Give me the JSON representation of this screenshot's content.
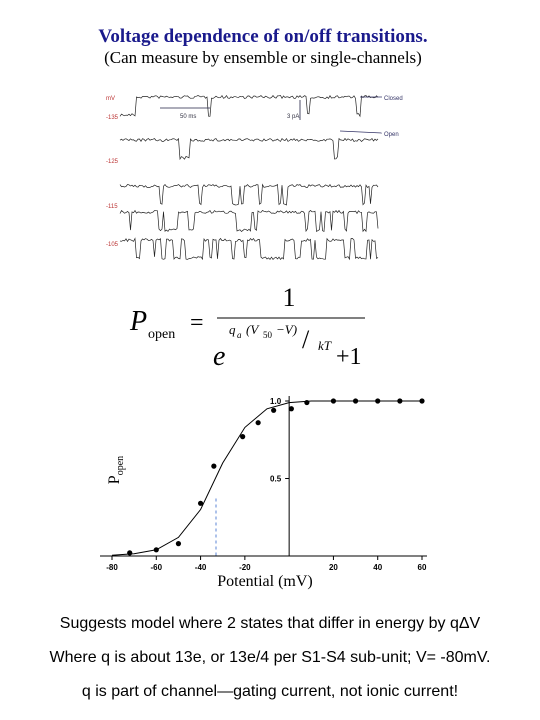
{
  "title": "Voltage dependence of on/off transitions.",
  "subtitle": "(Can measure by ensemble or single-channels)",
  "traces": {
    "voltages": [
      "mV",
      "-135",
      "-125",
      "-115",
      "-105"
    ],
    "time_scale": "50 ms",
    "current_scale": "3 pA",
    "closed": "Closed",
    "open": "Open"
  },
  "equation": {
    "p": "P",
    "p_sub": "open",
    "equals": "=",
    "numerator": "1",
    "base": "e",
    "q": "q",
    "q_sub": "a",
    "paren": "(V",
    "v_sub": "50",
    "rest": "−V)",
    "slash": "/",
    "kt": "kT",
    "plus": "+1"
  },
  "chart_data": {
    "type": "scatter",
    "xlabel": "Potential (mV)",
    "ylabel": "P",
    "ylabel_sub": "open",
    "xlim": [
      -80,
      60
    ],
    "ylim": [
      0,
      1
    ],
    "xticks": [
      {
        "value": -80,
        "label": "-80"
      },
      {
        "value": -60,
        "label": "-60"
      },
      {
        "value": -40,
        "label": "-40"
      },
      {
        "value": -20,
        "label": "-20"
      },
      20,
      40,
      60
    ],
    "yticks": [
      {
        "value": 0.5,
        "label": "0.5"
      },
      {
        "value": 1,
        "label": "1.0"
      }
    ],
    "series": [
      {
        "name": "measured",
        "color": "#000000",
        "x": [
          -72,
          -60,
          -50,
          -40,
          -34,
          -21,
          -14,
          -7,
          1,
          8,
          20,
          30,
          40,
          50,
          60
        ],
        "values": [
          0.02,
          0.04,
          0.08,
          0.34,
          0.58,
          0.77,
          0.86,
          0.94,
          0.95,
          0.99,
          1,
          1,
          1,
          1,
          1
        ]
      },
      {
        "name": "fit",
        "color": "#000000",
        "x": [
          -80,
          -70,
          -60,
          -50,
          -40,
          -30,
          -20,
          -10,
          0,
          10,
          20,
          30,
          40,
          50,
          60
        ],
        "values": [
          0.005,
          0.015,
          0.04,
          0.12,
          0.3,
          0.6,
          0.83,
          0.95,
          0.99,
          1,
          1,
          1,
          1,
          1,
          1
        ]
      }
    ]
  },
  "lines": [
    "Suggests model where 2 states that differ in energy by qΔV",
    "Where q is about 13e, or 13e/4 per S1-S4 sub-unit; V= -80mV.",
    "q is part of channel—gating current, not ionic current!"
  ]
}
